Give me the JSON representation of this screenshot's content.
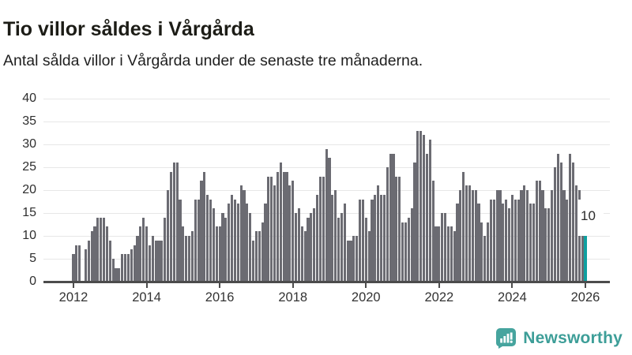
{
  "header": {
    "title": "Tio villor såldes i Vårgårda",
    "subtitle": "Antal sålda villor i Vårgårda under de senaste tre månaderna."
  },
  "chart_data": {
    "type": "bar",
    "title": "Tio villor såldes i Vårgårda",
    "subtitle": "Antal sålda villor i Vårgårda under de senaste tre månaderna.",
    "xlabel": "",
    "ylabel": "",
    "ylim": [
      0,
      40
    ],
    "y_ticks": [
      0,
      5,
      10,
      15,
      20,
      25,
      30,
      35,
      40
    ],
    "x_tick_labels": [
      "2012",
      "2014",
      "2016",
      "2018",
      "2020",
      "2022",
      "2024",
      "2026"
    ],
    "grid": true,
    "bar_color": "#6b6b72",
    "start_month": "2012-01",
    "end_month": "2026-01",
    "series": [
      {
        "name": "Antal sålda villor (rullande tre månader)",
        "values": [
          6,
          8,
          8,
          0,
          7,
          9,
          11,
          12,
          14,
          14,
          14,
          12,
          9,
          5,
          3,
          3,
          6,
          6,
          6,
          7,
          8,
          10,
          12,
          14,
          12,
          8,
          10,
          9,
          9,
          9,
          14,
          20,
          24,
          26,
          26,
          18,
          12,
          10,
          10,
          11,
          18,
          18,
          22,
          24,
          19,
          18,
          16,
          12,
          12,
          15,
          14,
          17,
          19,
          18,
          17,
          21,
          20,
          17,
          15,
          9,
          11,
          11,
          13,
          17,
          23,
          23,
          21,
          24,
          26,
          24,
          24,
          21,
          22,
          15,
          16,
          12,
          11,
          14,
          15,
          16,
          19,
          23,
          23,
          29,
          27,
          19,
          20,
          14,
          15,
          17,
          9,
          9,
          10,
          10,
          18,
          18,
          14,
          11,
          18,
          19,
          21,
          19,
          19,
          25,
          28,
          28,
          23,
          23,
          13,
          13,
          14,
          16,
          26,
          33,
          33,
          32,
          28,
          31,
          22,
          12,
          12,
          15,
          15,
          12,
          12,
          11,
          17,
          20,
          24,
          21,
          21,
          20,
          20,
          17,
          13,
          10,
          13,
          18,
          18,
          20,
          20,
          17,
          18,
          16,
          19,
          18,
          18,
          20,
          21,
          20,
          17,
          17,
          22,
          22,
          20,
          16,
          16,
          20,
          25,
          28,
          26,
          20,
          18,
          28,
          26,
          21,
          20,
          10,
          10
        ]
      }
    ],
    "highlight": {
      "index": 168,
      "value": 10,
      "label": "10",
      "color": "#0fa0a0"
    }
  },
  "footer": {
    "brand": "Newsworthy",
    "logo_icon": "bar-chart-speech-bubble-icon",
    "brand_color": "#3d9e98",
    "logo_bg_color": "#46a49e"
  }
}
